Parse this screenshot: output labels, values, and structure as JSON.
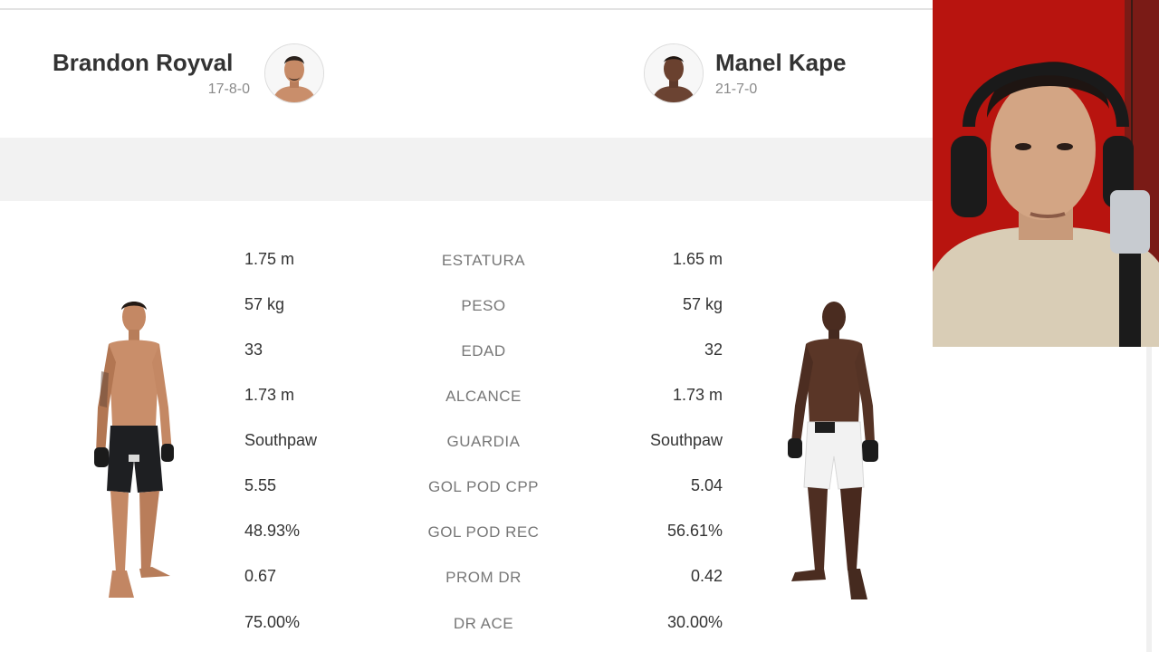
{
  "fighters": {
    "left": {
      "name": "Brandon Royval",
      "record": "17-8-0"
    },
    "right": {
      "name": "Manel Kape",
      "record": "21-7-0"
    }
  },
  "stats": [
    {
      "label": "ESTATURA",
      "left": "1.75 m",
      "right": "1.65 m"
    },
    {
      "label": "PESO",
      "left": "57 kg",
      "right": "57 kg"
    },
    {
      "label": "EDAD",
      "left": "33",
      "right": "32"
    },
    {
      "label": "ALCANCE",
      "left": "1.73 m",
      "right": "1.73 m"
    },
    {
      "label": "GUARDIA",
      "left": "Southpaw",
      "right": "Southpaw"
    },
    {
      "label": "GOL POD CPP",
      "left": "5.55",
      "right": "5.04"
    },
    {
      "label": "GOL POD REC",
      "left": "48.93%",
      "right": "56.61%"
    },
    {
      "label": "PROM DR",
      "left": "0.67",
      "right": "0.42"
    },
    {
      "label": "DR ACE",
      "left": "75.00%",
      "right": "30.00%"
    }
  ],
  "colors": {
    "page_bg": "#ffffff",
    "band_bg": "#f2f2f2",
    "text_dark": "#333333",
    "text_muted": "#777777",
    "webcam_bg": "#b8140f"
  },
  "icons": {
    "left_avatar": "fighter-headshot-icon",
    "right_avatar": "fighter-headshot-icon",
    "left_body": "fighter-full-body",
    "right_body": "fighter-full-body",
    "webcam": "webcam-overlay"
  }
}
